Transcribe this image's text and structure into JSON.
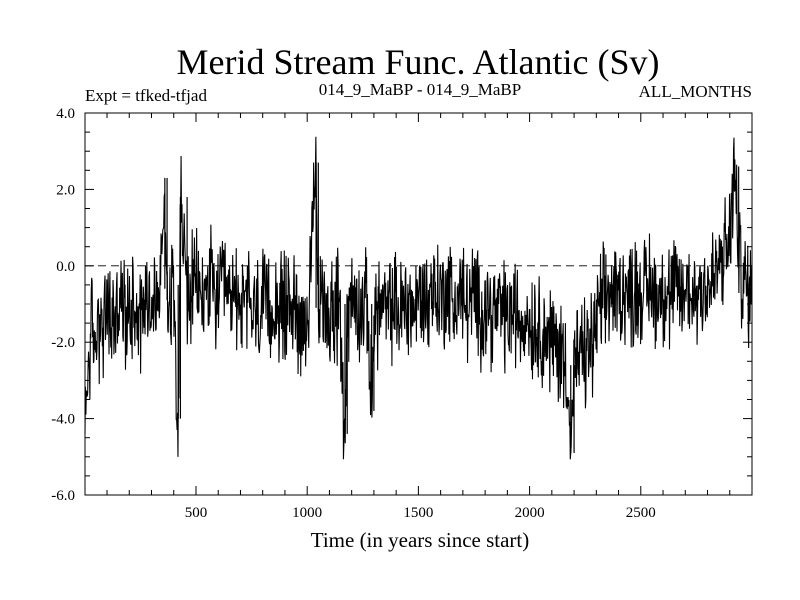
{
  "chart_data": {
    "type": "line",
    "title": "Merid Stream Func. Atlantic (Sv)",
    "subtitle_left": "Expt = tfked-tfjad",
    "subtitle_center": "014_9_MaBP - 014_9_MaBP",
    "subtitle_right": "ALL_MONTHS",
    "xlabel": "Time (in years since start)",
    "ylabel": "",
    "xlim": [
      1,
      3000
    ],
    "ylim": [
      -6.0,
      4.0
    ],
    "x_ticks": [
      500,
      1000,
      1500,
      2000,
      2500
    ],
    "x_tick_labels": [
      "500",
      "1000",
      "1500",
      "2000",
      "2500"
    ],
    "y_ticks": [
      -6.0,
      -4.0,
      -2.0,
      0.0,
      2.0,
      4.0
    ],
    "y_tick_labels": [
      "-6.0",
      "-4.0",
      "-2.0",
      "0.0",
      "2.0",
      "4.0"
    ],
    "reference_line": {
      "y": 0.0,
      "style": "dashed"
    },
    "grid": false,
    "legend": "none",
    "line_color": "#000000",
    "series": [
      {
        "name": "",
        "points": [
          [
            1,
            -4.4
          ],
          [
            15,
            -2.6
          ],
          [
            30,
            -1.6
          ],
          [
            45,
            -2.2
          ],
          [
            60,
            -1.4
          ],
          [
            80,
            -1.8
          ],
          [
            100,
            -1.2
          ],
          [
            130,
            -1.5
          ],
          [
            160,
            -1.0
          ],
          [
            190,
            -1.4
          ],
          [
            220,
            -0.8
          ],
          [
            250,
            -1.3
          ],
          [
            280,
            -0.7
          ],
          [
            310,
            -1.1
          ],
          [
            340,
            -0.6
          ],
          [
            360,
            2.3
          ],
          [
            370,
            -0.9
          ],
          [
            400,
            -0.5
          ],
          [
            420,
            -4.0
          ],
          [
            430,
            1.8
          ],
          [
            460,
            -0.8
          ],
          [
            500,
            -0.5
          ],
          [
            530,
            -0.9
          ],
          [
            560,
            -0.4
          ],
          [
            590,
            -0.9
          ],
          [
            620,
            -0.6
          ],
          [
            650,
            -1.0
          ],
          [
            680,
            -0.7
          ],
          [
            710,
            -1.1
          ],
          [
            740,
            -0.9
          ],
          [
            770,
            -1.3
          ],
          [
            800,
            -1.0
          ],
          [
            830,
            -1.3
          ],
          [
            860,
            -1.0
          ],
          [
            890,
            -1.2
          ],
          [
            920,
            -0.9
          ],
          [
            950,
            -1.2
          ],
          [
            980,
            -1.5
          ],
          [
            1010,
            -1.1
          ],
          [
            1040,
            2.7
          ],
          [
            1050,
            -1.2
          ],
          [
            1080,
            -0.9
          ],
          [
            1110,
            -1.3
          ],
          [
            1140,
            -1.0
          ],
          [
            1170,
            -4.4
          ],
          [
            1180,
            -1.2
          ],
          [
            1210,
            -0.9
          ],
          [
            1240,
            -1.2
          ],
          [
            1270,
            -1.0
          ],
          [
            1290,
            -3.8
          ],
          [
            1300,
            -1.3
          ],
          [
            1330,
            -1.0
          ],
          [
            1360,
            -1.3
          ],
          [
            1390,
            -1.0
          ],
          [
            1420,
            -1.2
          ],
          [
            1450,
            -0.9
          ],
          [
            1480,
            -1.2
          ],
          [
            1510,
            -0.7
          ],
          [
            1540,
            -1.0
          ],
          [
            1570,
            -0.5
          ],
          [
            1600,
            -0.9
          ],
          [
            1630,
            -0.6
          ],
          [
            1660,
            -1.0
          ],
          [
            1690,
            -0.7
          ],
          [
            1720,
            -1.1
          ],
          [
            1750,
            -0.8
          ],
          [
            1780,
            -1.2
          ],
          [
            1810,
            -1.0
          ],
          [
            1840,
            -1.3
          ],
          [
            1870,
            -1.1
          ],
          [
            1900,
            -1.4
          ],
          [
            1930,
            -1.2
          ],
          [
            1960,
            -1.5
          ],
          [
            1990,
            -1.3
          ],
          [
            2020,
            -1.6
          ],
          [
            2050,
            -1.6
          ],
          [
            2080,
            -1.9
          ],
          [
            2110,
            -2.0
          ],
          [
            2140,
            -2.3
          ],
          [
            2170,
            -2.6
          ],
          [
            2185,
            -4.9
          ],
          [
            2200,
            -2.6
          ],
          [
            2230,
            -2.4
          ],
          [
            2260,
            -2.3
          ],
          [
            2290,
            -1.9
          ],
          [
            2310,
            -1.2
          ],
          [
            2330,
            -1.0
          ],
          [
            2360,
            -0.7
          ],
          [
            2390,
            -0.8
          ],
          [
            2420,
            -0.6
          ],
          [
            2450,
            -0.8
          ],
          [
            2480,
            -0.6
          ],
          [
            2510,
            -0.7
          ],
          [
            2540,
            -0.5
          ],
          [
            2570,
            -0.8
          ],
          [
            2600,
            -0.6
          ],
          [
            2630,
            -0.9
          ],
          [
            2660,
            -0.6
          ],
          [
            2690,
            -0.8
          ],
          [
            2720,
            -0.6
          ],
          [
            2750,
            -0.8
          ],
          [
            2780,
            -0.4
          ],
          [
            2810,
            -0.6
          ],
          [
            2840,
            -0.2
          ],
          [
            2870,
            0.2
          ],
          [
            2900,
            0.6
          ],
          [
            2920,
            2.6
          ],
          [
            2940,
            0.2
          ],
          [
            2960,
            -0.3
          ],
          [
            2980,
            -0.7
          ],
          [
            3000,
            -0.6
          ]
        ]
      }
    ]
  }
}
